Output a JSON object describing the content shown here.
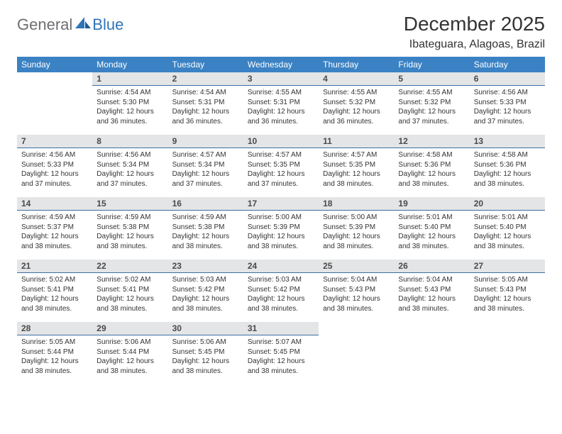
{
  "brand": {
    "part1": "General",
    "part2": "Blue"
  },
  "title": "December 2025",
  "location": "Ibateguara, Alagoas, Brazil",
  "colors": {
    "header_bg": "#3b82c4",
    "header_text": "#ffffff",
    "daynum_bg": "#e4e5e7",
    "daynum_border": "#3b6fa0",
    "body_text": "#333333",
    "logo_gray": "#6d6e71",
    "logo_blue": "#2f74b5"
  },
  "weekdays": [
    "Sunday",
    "Monday",
    "Tuesday",
    "Wednesday",
    "Thursday",
    "Friday",
    "Saturday"
  ],
  "weeks": [
    [
      null,
      {
        "n": "1",
        "sr": "4:54 AM",
        "ss": "5:30 PM",
        "dl": "12 hours and 36 minutes."
      },
      {
        "n": "2",
        "sr": "4:54 AM",
        "ss": "5:31 PM",
        "dl": "12 hours and 36 minutes."
      },
      {
        "n": "3",
        "sr": "4:55 AM",
        "ss": "5:31 PM",
        "dl": "12 hours and 36 minutes."
      },
      {
        "n": "4",
        "sr": "4:55 AM",
        "ss": "5:32 PM",
        "dl": "12 hours and 36 minutes."
      },
      {
        "n": "5",
        "sr": "4:55 AM",
        "ss": "5:32 PM",
        "dl": "12 hours and 37 minutes."
      },
      {
        "n": "6",
        "sr": "4:56 AM",
        "ss": "5:33 PM",
        "dl": "12 hours and 37 minutes."
      }
    ],
    [
      {
        "n": "7",
        "sr": "4:56 AM",
        "ss": "5:33 PM",
        "dl": "12 hours and 37 minutes."
      },
      {
        "n": "8",
        "sr": "4:56 AM",
        "ss": "5:34 PM",
        "dl": "12 hours and 37 minutes."
      },
      {
        "n": "9",
        "sr": "4:57 AM",
        "ss": "5:34 PM",
        "dl": "12 hours and 37 minutes."
      },
      {
        "n": "10",
        "sr": "4:57 AM",
        "ss": "5:35 PM",
        "dl": "12 hours and 37 minutes."
      },
      {
        "n": "11",
        "sr": "4:57 AM",
        "ss": "5:35 PM",
        "dl": "12 hours and 38 minutes."
      },
      {
        "n": "12",
        "sr": "4:58 AM",
        "ss": "5:36 PM",
        "dl": "12 hours and 38 minutes."
      },
      {
        "n": "13",
        "sr": "4:58 AM",
        "ss": "5:36 PM",
        "dl": "12 hours and 38 minutes."
      }
    ],
    [
      {
        "n": "14",
        "sr": "4:59 AM",
        "ss": "5:37 PM",
        "dl": "12 hours and 38 minutes."
      },
      {
        "n": "15",
        "sr": "4:59 AM",
        "ss": "5:38 PM",
        "dl": "12 hours and 38 minutes."
      },
      {
        "n": "16",
        "sr": "4:59 AM",
        "ss": "5:38 PM",
        "dl": "12 hours and 38 minutes."
      },
      {
        "n": "17",
        "sr": "5:00 AM",
        "ss": "5:39 PM",
        "dl": "12 hours and 38 minutes."
      },
      {
        "n": "18",
        "sr": "5:00 AM",
        "ss": "5:39 PM",
        "dl": "12 hours and 38 minutes."
      },
      {
        "n": "19",
        "sr": "5:01 AM",
        "ss": "5:40 PM",
        "dl": "12 hours and 38 minutes."
      },
      {
        "n": "20",
        "sr": "5:01 AM",
        "ss": "5:40 PM",
        "dl": "12 hours and 38 minutes."
      }
    ],
    [
      {
        "n": "21",
        "sr": "5:02 AM",
        "ss": "5:41 PM",
        "dl": "12 hours and 38 minutes."
      },
      {
        "n": "22",
        "sr": "5:02 AM",
        "ss": "5:41 PM",
        "dl": "12 hours and 38 minutes."
      },
      {
        "n": "23",
        "sr": "5:03 AM",
        "ss": "5:42 PM",
        "dl": "12 hours and 38 minutes."
      },
      {
        "n": "24",
        "sr": "5:03 AM",
        "ss": "5:42 PM",
        "dl": "12 hours and 38 minutes."
      },
      {
        "n": "25",
        "sr": "5:04 AM",
        "ss": "5:43 PM",
        "dl": "12 hours and 38 minutes."
      },
      {
        "n": "26",
        "sr": "5:04 AM",
        "ss": "5:43 PM",
        "dl": "12 hours and 38 minutes."
      },
      {
        "n": "27",
        "sr": "5:05 AM",
        "ss": "5:43 PM",
        "dl": "12 hours and 38 minutes."
      }
    ],
    [
      {
        "n": "28",
        "sr": "5:05 AM",
        "ss": "5:44 PM",
        "dl": "12 hours and 38 minutes."
      },
      {
        "n": "29",
        "sr": "5:06 AM",
        "ss": "5:44 PM",
        "dl": "12 hours and 38 minutes."
      },
      {
        "n": "30",
        "sr": "5:06 AM",
        "ss": "5:45 PM",
        "dl": "12 hours and 38 minutes."
      },
      {
        "n": "31",
        "sr": "5:07 AM",
        "ss": "5:45 PM",
        "dl": "12 hours and 38 minutes."
      },
      null,
      null,
      null
    ]
  ],
  "labels": {
    "sunrise": "Sunrise:",
    "sunset": "Sunset:",
    "daylight": "Daylight:"
  }
}
